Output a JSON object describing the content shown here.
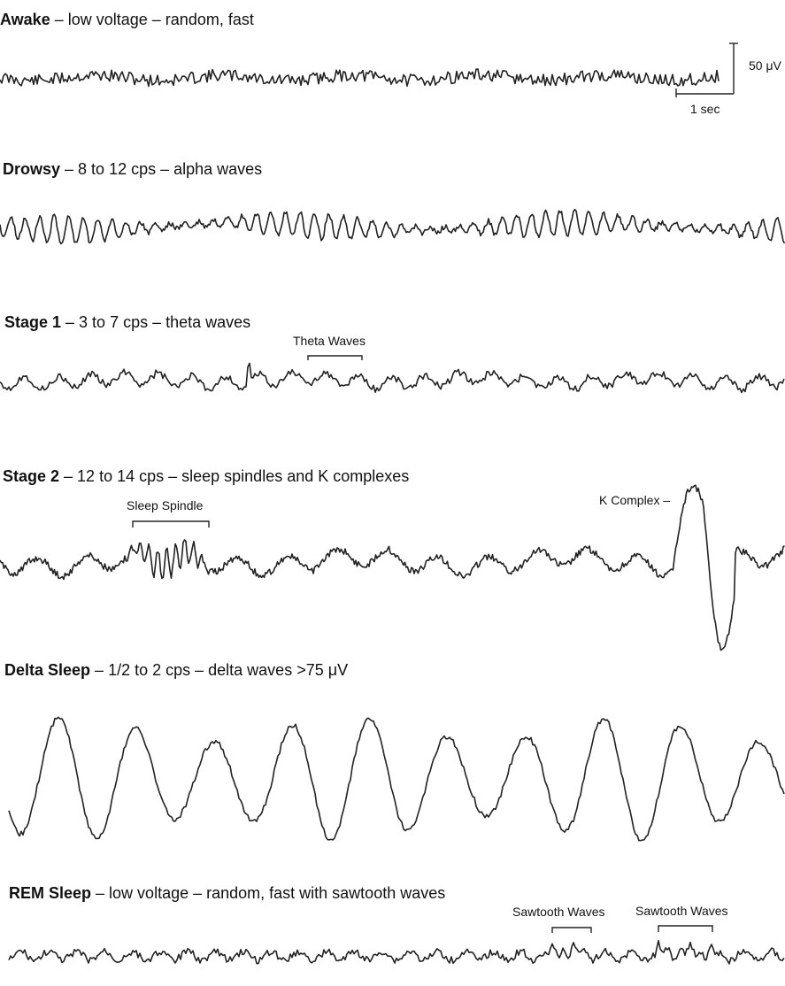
{
  "stages": [
    {
      "id": "awake",
      "name": "Awake",
      "description": "low voltage – random, fast"
    },
    {
      "id": "drowsy",
      "name": "Drowsy",
      "description": "8 to 12 cps – alpha waves"
    },
    {
      "id": "stage1",
      "name": "Stage 1",
      "description": "3 to 7 cps – theta waves",
      "annotation": "Theta Waves"
    },
    {
      "id": "stage2",
      "name": "Stage 2",
      "description": "12 to 14 cps – sleep spindles and K complexes",
      "annotation_spindle": "Sleep Spindle",
      "annotation_k": "K Complex –"
    },
    {
      "id": "delta",
      "name": "Delta Sleep",
      "description": "1/2 to 2 cps – delta waves >75 μV"
    },
    {
      "id": "rem",
      "name": "REM Sleep",
      "description": "low voltage – random, fast with sawtooth waves",
      "annotation_saw1": "Sawtooth Waves",
      "annotation_saw2": "Sawtooth Waves"
    }
  ],
  "scale_bar": {
    "amplitude": "50 μV",
    "time": "1 sec"
  }
}
